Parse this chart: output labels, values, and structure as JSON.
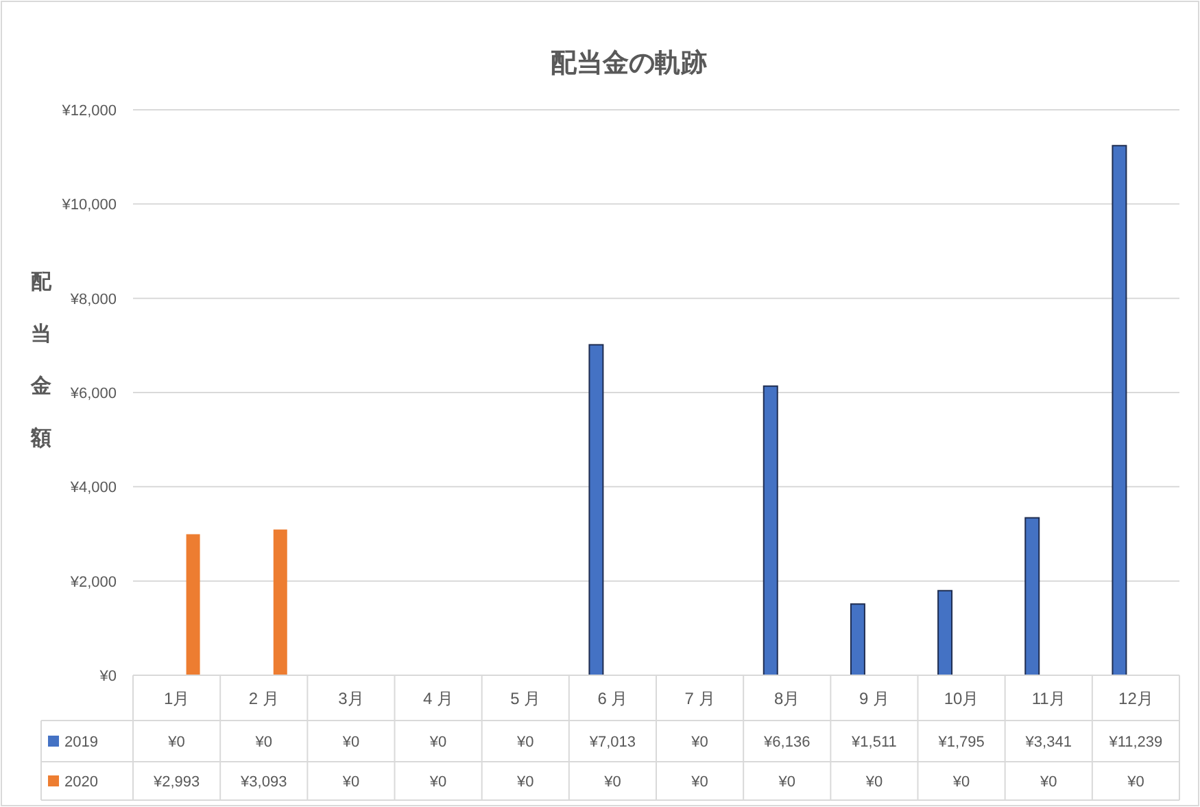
{
  "chart_data": {
    "type": "bar",
    "title": "配当金の軌跡",
    "ylabel": "配当金額",
    "categories": [
      "1月",
      "2 月",
      "3月",
      "4 月",
      "5 月",
      "6 月",
      "7 月",
      "8月",
      "9 月",
      "10月",
      "11月",
      "12月"
    ],
    "series": [
      {
        "name": "2019",
        "color": "#4472c4",
        "values": [
          0,
          0,
          0,
          0,
          0,
          7013,
          0,
          6136,
          1511,
          1795,
          3341,
          11239
        ],
        "value_labels": [
          "¥0",
          "¥0",
          "¥0",
          "¥0",
          "¥0",
          "¥7,013",
          "¥0",
          "¥6,136",
          "¥1,511",
          "¥1,795",
          "¥3,341",
          "¥11,239"
        ]
      },
      {
        "name": "2020",
        "color": "#ed7d31",
        "values": [
          2993,
          3093,
          0,
          0,
          0,
          0,
          0,
          0,
          0,
          0,
          0,
          0
        ],
        "value_labels": [
          "¥2,993",
          "¥3,093",
          "¥0",
          "¥0",
          "¥0",
          "¥0",
          "¥0",
          "¥0",
          "¥0",
          "¥0",
          "¥0",
          "¥0"
        ]
      }
    ],
    "ylim": [
      0,
      12000
    ],
    "yticks": [
      {
        "value": 0,
        "label": "¥0"
      },
      {
        "value": 2000,
        "label": "¥2,000"
      },
      {
        "value": 4000,
        "label": "¥4,000"
      },
      {
        "value": 6000,
        "label": "¥6,000"
      },
      {
        "value": 8000,
        "label": "¥8,000"
      },
      {
        "value": 10000,
        "label": "¥10,000"
      },
      {
        "value": 12000,
        "label": "¥12,000"
      }
    ],
    "grid": "y",
    "legend": "bottom"
  }
}
